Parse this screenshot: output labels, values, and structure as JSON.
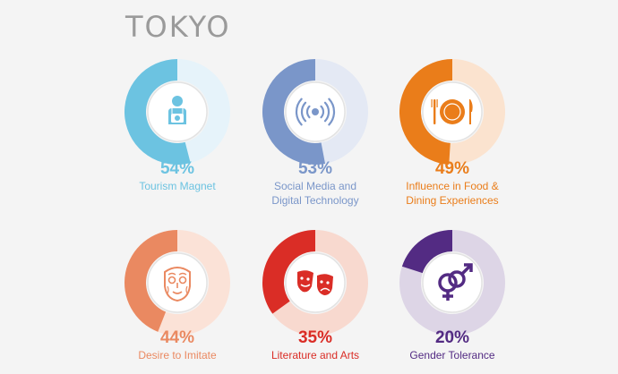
{
  "title": "TOKYO",
  "chart_data": [
    {
      "type": "pie",
      "value_pct": 54,
      "value_label": "54%",
      "label_lines": [
        "Tourism Magnet"
      ],
      "color": "#6cc3e1",
      "track_color": "#e6f3fa",
      "icon": "tourist-icon"
    },
    {
      "type": "pie",
      "value_pct": 53,
      "value_label": "53%",
      "label_lines": [
        "Social Media and",
        "Digital Technology"
      ],
      "color": "#7a96c9",
      "track_color": "#e4e9f4",
      "icon": "wireless-signal-icon"
    },
    {
      "type": "pie",
      "value_pct": 49,
      "value_label": "49%",
      "label_lines": [
        "Influence in Food &",
        "Dining Experiences"
      ],
      "color": "#ea7d1a",
      "track_color": "#fbe3cf",
      "icon": "plate-cutlery-icon"
    },
    {
      "type": "pie",
      "value_pct": 44,
      "value_label": "44%",
      "label_lines": [
        "Desire to Imitate"
      ],
      "color": "#ea8961",
      "track_color": "#fbe2d7",
      "icon": "tribal-mask-icon"
    },
    {
      "type": "pie",
      "value_pct": 35,
      "value_label": "35%",
      "label_lines": [
        "Literature and Arts"
      ],
      "color": "#da2d26",
      "track_color": "#f8d9cf",
      "icon": "theater-masks-icon"
    },
    {
      "type": "pie",
      "value_pct": 20,
      "value_label": "20%",
      "label_lines": [
        "Gender Tolerance"
      ],
      "color": "#532b83",
      "track_color": "#ddd5e6",
      "icon": "gender-symbols-icon"
    }
  ]
}
